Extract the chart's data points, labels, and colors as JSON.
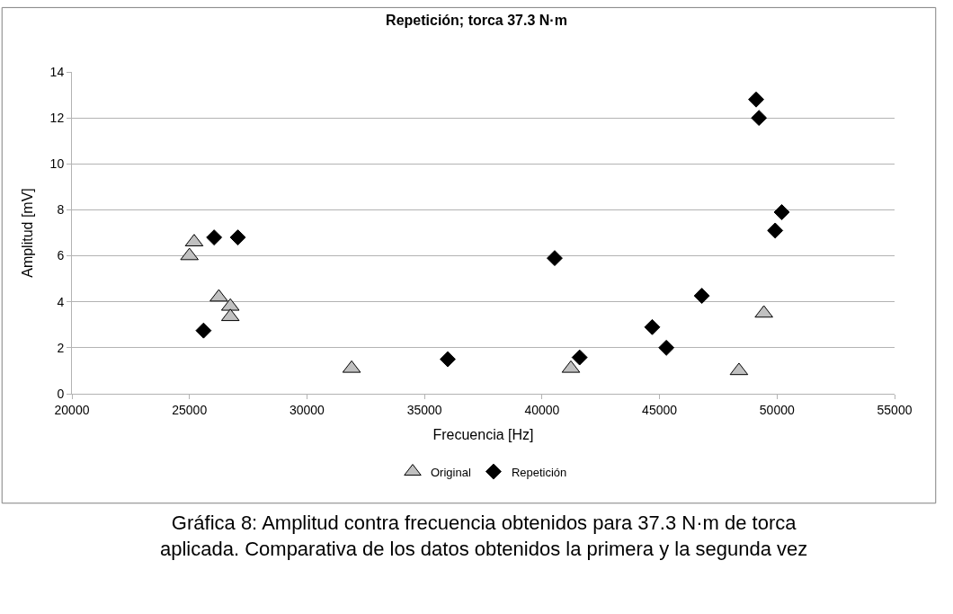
{
  "chart_data": {
    "type": "scatter",
    "title": "Repetición; torca 37.3 N·m",
    "xlabel": "Frecuencia [Hz]",
    "ylabel": "Amplitud [mV]",
    "xlim": [
      20000,
      55000
    ],
    "xticks": [
      20000,
      25000,
      30000,
      35000,
      40000,
      45000,
      50000,
      55000
    ],
    "ylim": [
      0,
      14
    ],
    "yticks": [
      0,
      2,
      4,
      6,
      8,
      10,
      12,
      14
    ],
    "grid": "y",
    "legend": "bottom",
    "series": [
      {
        "name": "Original",
        "color": "#c0c0c0",
        "marker": "triangle",
        "x": [
          25000,
          25200,
          26250,
          26740,
          26740,
          31900,
          41230,
          48380,
          49440
        ],
        "values": [
          6.0,
          6.6,
          4.2,
          3.8,
          3.35,
          1.1,
          1.1,
          1.0,
          3.5
        ]
      },
      {
        "name": "Repetición",
        "color": "#000000",
        "marker": "diamond",
        "x": [
          26050,
          27060,
          25600,
          35990,
          40540,
          41600,
          44690,
          45290,
          46800,
          49110,
          49230,
          50200,
          49920
        ],
        "values": [
          6.8,
          6.8,
          2.75,
          1.5,
          5.9,
          1.58,
          2.9,
          2.0,
          4.26,
          12.8,
          12.0,
          7.9,
          7.1
        ]
      }
    ],
    "annotations": [
      "Gráfica 8: Amplitud contra frecuencia obtenidos para 37.3 N·m de torca aplicada. Comparativa de los datos obtenidos la primera y la segunda vez"
    ]
  }
}
